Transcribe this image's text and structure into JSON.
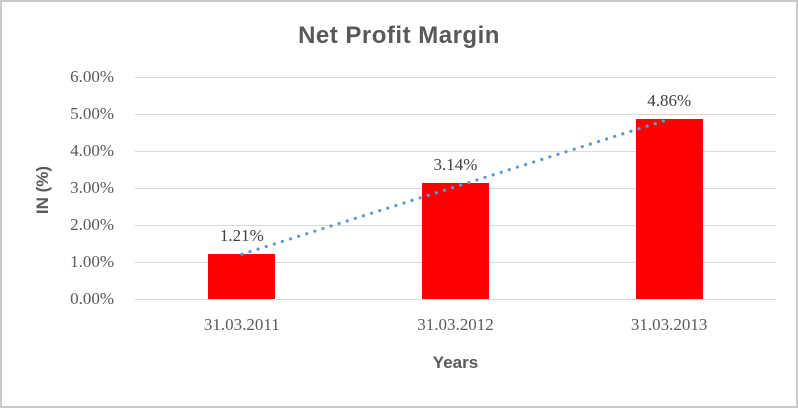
{
  "chart_data": {
    "type": "bar",
    "title": "Net Profit Margin",
    "categories": [
      "31.03.2011",
      "31.03.2012",
      "31.03.2013"
    ],
    "values": [
      1.21,
      3.14,
      4.86
    ],
    "data_labels": [
      "1.21%",
      "3.14%",
      "4.86%"
    ],
    "xlabel": "Years",
    "ylabel": "IN (%)",
    "ylim": [
      0,
      6
    ],
    "ytick_step": 1,
    "ytick_labels": [
      "0.00%",
      "1.00%",
      "2.00%",
      "3.00%",
      "4.00%",
      "5.00%",
      "6.00%"
    ],
    "grid": true,
    "legend": "none",
    "bar_color": "#ff0000",
    "gridline_color": "#d9d9d9",
    "text_color": "#595959",
    "trendline": {
      "type": "linear",
      "style": "dotted",
      "color": "#5b9bd5"
    }
  }
}
